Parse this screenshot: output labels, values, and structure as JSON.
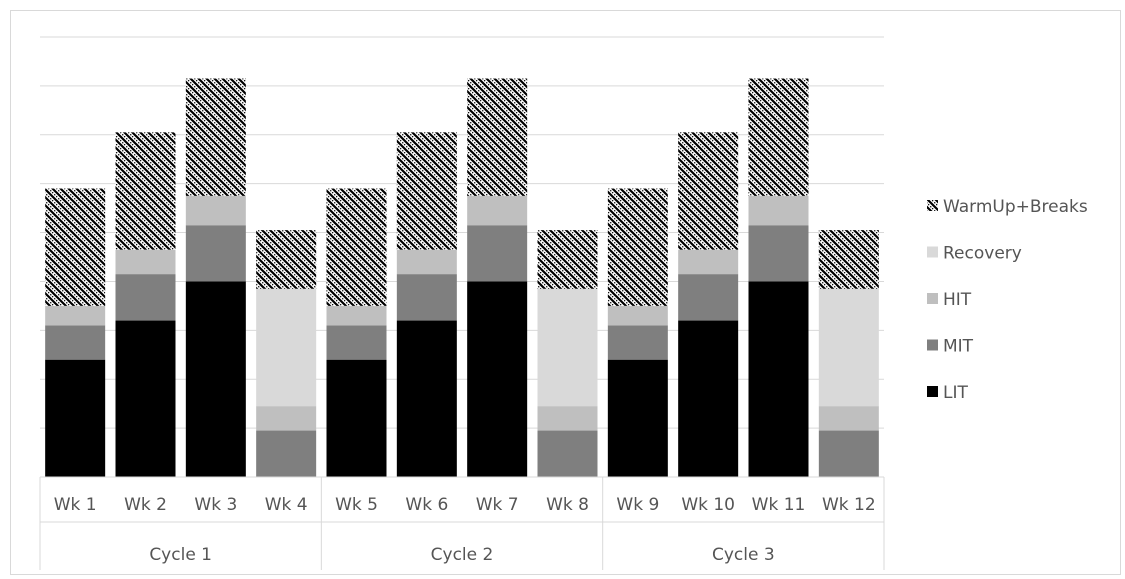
{
  "chart_data": {
    "type": "bar",
    "stacked": true,
    "categories": [
      "Wk 1",
      "Wk 2",
      "Wk 3",
      "Wk 4",
      "Wk 5",
      "Wk 6",
      "Wk 7",
      "Wk 8",
      "Wk 9",
      "Wk 10",
      "Wk 11",
      "Wk 12"
    ],
    "groups": [
      {
        "label": "Cycle 1",
        "categories": [
          "Wk 1",
          "Wk 2",
          "Wk 3",
          "Wk 4"
        ]
      },
      {
        "label": "Cycle 2",
        "categories": [
          "Wk 5",
          "Wk 6",
          "Wk 7",
          "Wk 8"
        ]
      },
      {
        "label": "Cycle 3",
        "categories": [
          "Wk 9",
          "Wk 10",
          "Wk 11",
          "Wk 12"
        ]
      }
    ],
    "series": [
      {
        "name": "LIT",
        "color": "#000000",
        "pattern": "solid",
        "values": [
          2.4,
          3.2,
          4.0,
          0,
          2.4,
          3.2,
          4.0,
          0,
          2.4,
          3.2,
          4.0,
          0
        ]
      },
      {
        "name": "MIT",
        "color": "#7f7f7f",
        "pattern": "solid",
        "values": [
          0.7,
          0.95,
          1.15,
          0.95,
          0.7,
          0.95,
          1.15,
          0.95,
          0.7,
          0.95,
          1.15,
          0.95
        ]
      },
      {
        "name": "HIT",
        "color": "#bfbfbf",
        "pattern": "solid",
        "values": [
          0.4,
          0.5,
          0.6,
          0.5,
          0.4,
          0.5,
          0.6,
          0.5,
          0.4,
          0.5,
          0.6,
          0.5
        ]
      },
      {
        "name": "Recovery",
        "color": "#d9d9d9",
        "pattern": "solid",
        "values": [
          0,
          0,
          0,
          2.4,
          0,
          0,
          0,
          2.4,
          0,
          0,
          0,
          2.4
        ]
      },
      {
        "name": "WarmUp+Breaks",
        "color": "#000000",
        "pattern": "diagonal-hatch",
        "values": [
          2.4,
          2.4,
          2.4,
          1.2,
          2.4,
          2.4,
          2.4,
          1.2,
          2.4,
          2.4,
          2.4,
          1.2
        ]
      }
    ],
    "ylim": [
      0,
      9
    ],
    "ytick_step": 1,
    "y_axis_labels_shown": false,
    "grid": true,
    "legend_position": "right",
    "legend_order": [
      "WarmUp+Breaks",
      "Recovery",
      "HIT",
      "MIT",
      "LIT"
    ],
    "title": "",
    "xlabel": "",
    "ylabel": ""
  }
}
